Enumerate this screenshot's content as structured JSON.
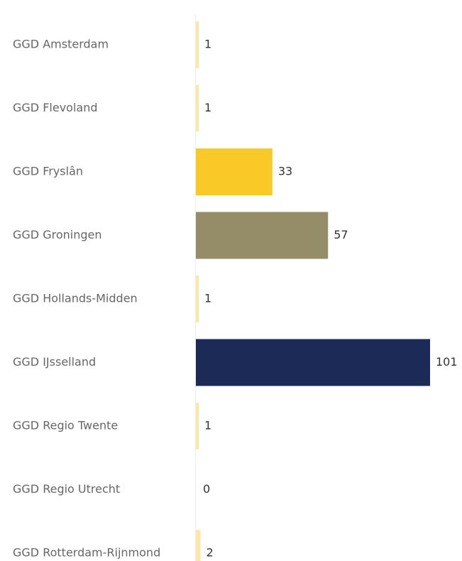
{
  "chart_data": {
    "type": "bar",
    "orientation": "horizontal",
    "categories": [
      "GGD Amsterdam",
      "GGD Flevoland",
      "GGD Fryslân",
      "GGD Groningen",
      "GGD Hollands-Midden",
      "GGD IJsselland",
      "GGD Regio Twente",
      "GGD Regio Utrecht",
      "GGD Rotterdam-Rijnmond"
    ],
    "values": [
      1,
      1,
      33,
      57,
      1,
      101,
      1,
      0,
      2
    ],
    "value_labels": [
      "1",
      "1",
      "33",
      "57",
      "1",
      "101",
      "1",
      "0",
      "2"
    ],
    "colors": [
      "#fbe7a6",
      "#fbe7a6",
      "#f9c928",
      "#958c68",
      "#fbe7a6",
      "#1b2a56",
      "#fbe7a6",
      "#fbe7a6",
      "#fbe7a6"
    ],
    "title": "",
    "xlabel": "",
    "ylabel": "",
    "xlim": [
      0,
      101
    ],
    "grid": false,
    "legend": "none"
  }
}
